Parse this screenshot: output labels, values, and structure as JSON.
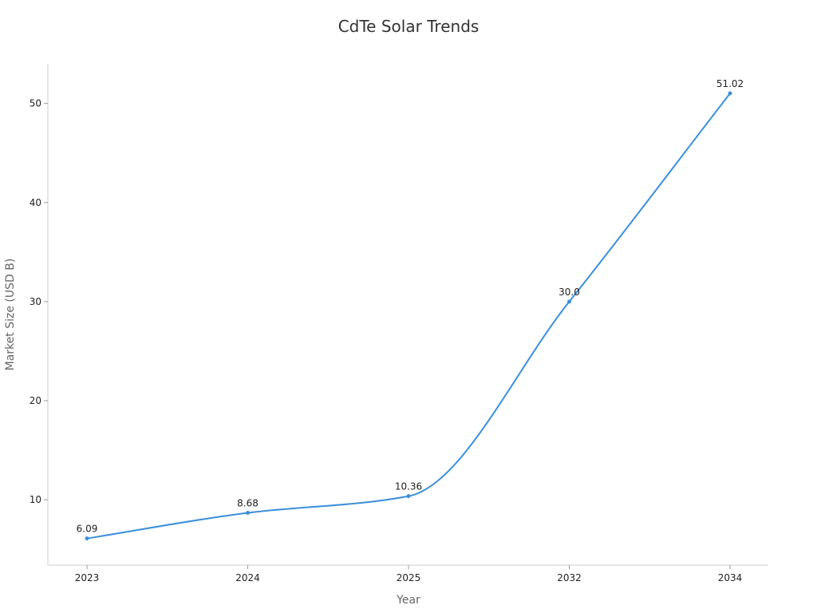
{
  "chart_data": {
    "type": "line",
    "title": "CdTe Solar Trends",
    "xlabel": "Year",
    "ylabel": "Market Size (USD B)",
    "categories": [
      "2023",
      "2024",
      "2025",
      "2032",
      "2034"
    ],
    "series": [
      {
        "name": "Market Size (USD B)",
        "values": [
          6.09,
          8.68,
          10.36,
          30.0,
          51.02
        ]
      }
    ],
    "data_labels": [
      "6.09",
      "8.68",
      "10.36",
      "30.0",
      "51.02"
    ],
    "yticks": [
      "10",
      "20",
      "30",
      "40",
      "50"
    ],
    "ylim": [
      3.4,
      54
    ],
    "grid": false,
    "legend": "none",
    "colors": {
      "line": "#3b8fdc",
      "axis": "#cccccc",
      "text": "#222222"
    }
  }
}
